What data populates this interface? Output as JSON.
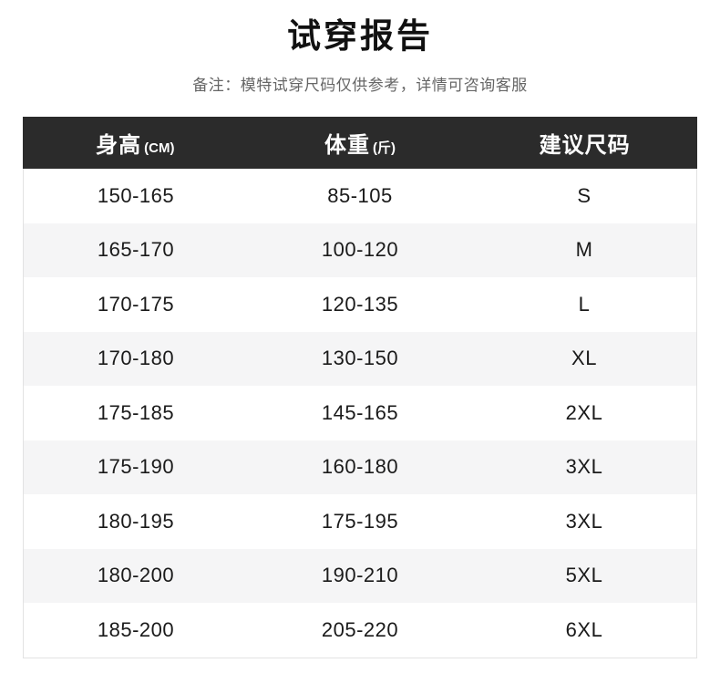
{
  "page": {
    "title": "试穿报告",
    "note": "备注：模特试穿尺码仅供参考，详情可咨询客服"
  },
  "table": {
    "headers": [
      {
        "label": "身高",
        "unit": "(CM)"
      },
      {
        "label": "体重",
        "unit": "(斤)"
      },
      {
        "label": "建议尺码",
        "unit": ""
      }
    ],
    "rows": [
      {
        "height": "150-165",
        "weight": "85-105",
        "size": "S"
      },
      {
        "height": "165-170",
        "weight": "100-120",
        "size": "M"
      },
      {
        "height": "170-175",
        "weight": "120-135",
        "size": "L"
      },
      {
        "height": "170-180",
        "weight": "130-150",
        "size": "XL"
      },
      {
        "height": "175-185",
        "weight": "145-165",
        "size": "2XL"
      },
      {
        "height": "175-190",
        "weight": "160-180",
        "size": "3XL"
      },
      {
        "height": "180-195",
        "weight": "175-195",
        "size": "3XL"
      },
      {
        "height": "180-200",
        "weight": "190-210",
        "size": "5XL"
      },
      {
        "height": "185-200",
        "weight": "205-220",
        "size": "6XL"
      }
    ]
  },
  "colors": {
    "header_bg": "#2b2b2b",
    "header_text": "#ffffff",
    "row_bg": "#ffffff",
    "row_alt_bg": "#f5f5f6",
    "border": "#e2e2e2",
    "title_text": "#111111",
    "note_text": "#666666",
    "cell_text": "#1a1a1a"
  }
}
